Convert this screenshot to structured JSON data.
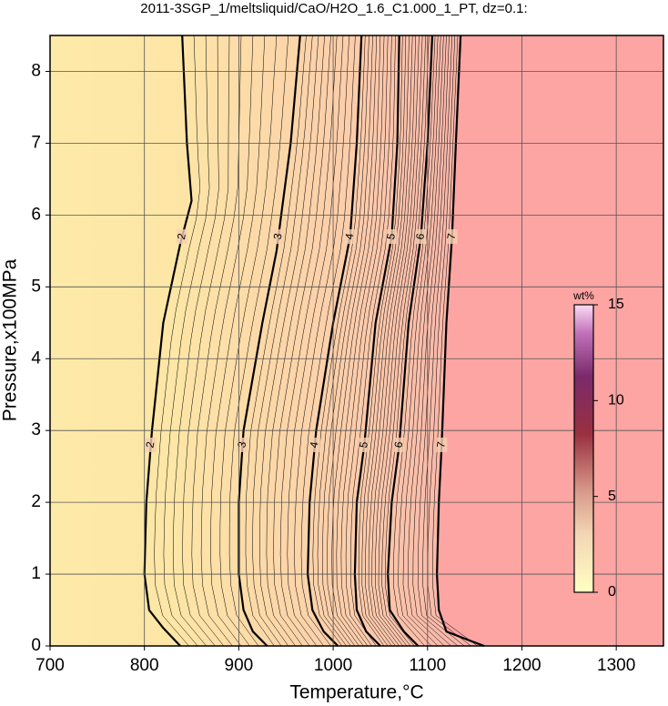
{
  "chart_data": {
    "type": "contour",
    "title": "2011-3SGP_1/meltsliquid/CaO/H2O_1.6_C1.000_1_PT, dz=0.1:",
    "x_label": "Temperature,°C",
    "y_label": "Pressure,x100MPa",
    "xlim": [
      700,
      1350
    ],
    "ylim": [
      0,
      8.5
    ],
    "xticks": [
      700,
      800,
      900,
      1000,
      1100,
      1200,
      1300
    ],
    "yticks": [
      0,
      1,
      2,
      3,
      4,
      5,
      6,
      7,
      8
    ],
    "grid": true,
    "contours": [
      {
        "level": 2,
        "x": [
          840,
          845,
          850,
          838,
          820,
          808,
          802,
          800,
          805,
          820,
          838
        ],
        "y": [
          8.5,
          7,
          6.2,
          5.6,
          4.5,
          3,
          2,
          1,
          0.5,
          0.25,
          0
        ]
      },
      {
        "level": 3,
        "x": [
          965,
          955,
          945,
          940,
          925,
          905,
          900,
          900,
          905,
          915,
          930
        ],
        "y": [
          8.5,
          7,
          6,
          5.5,
          4.5,
          3,
          2,
          1,
          0.5,
          0.2,
          0
        ]
      },
      {
        "level": 4,
        "x": [
          1030,
          1025,
          1018,
          1000,
          982,
          975,
          973,
          978,
          990,
          1005
        ],
        "y": [
          8.5,
          7,
          5.7,
          4.5,
          3,
          2,
          1,
          0.5,
          0.2,
          0
        ]
      },
      {
        "level": 5,
        "x": [
          1070,
          1068,
          1062,
          1045,
          1033,
          1025,
          1023,
          1025,
          1035,
          1050
        ],
        "y": [
          8.5,
          7,
          5.7,
          4.5,
          2.8,
          2,
          1,
          0.5,
          0.2,
          0
        ]
      },
      {
        "level": 6,
        "x": [
          1105,
          1100,
          1093,
          1080,
          1070,
          1062,
          1058,
          1060,
          1075,
          1090
        ],
        "y": [
          8.5,
          7,
          5.7,
          4.5,
          2.8,
          2,
          1,
          0.5,
          0.2,
          0
        ]
      },
      {
        "level": 7,
        "x": [
          1135,
          1130,
          1126,
          1120,
          1115,
          1112,
          1110,
          1112,
          1120,
          1150,
          1160
        ],
        "y": [
          8.5,
          7,
          5.7,
          4.5,
          2.8,
          2,
          1,
          0.5,
          0.2,
          0.05,
          0
        ]
      }
    ],
    "colorbar": {
      "label": "wt%",
      "lim": [
        0,
        15
      ],
      "ticks": [
        0,
        5,
        10,
        15
      ]
    }
  }
}
